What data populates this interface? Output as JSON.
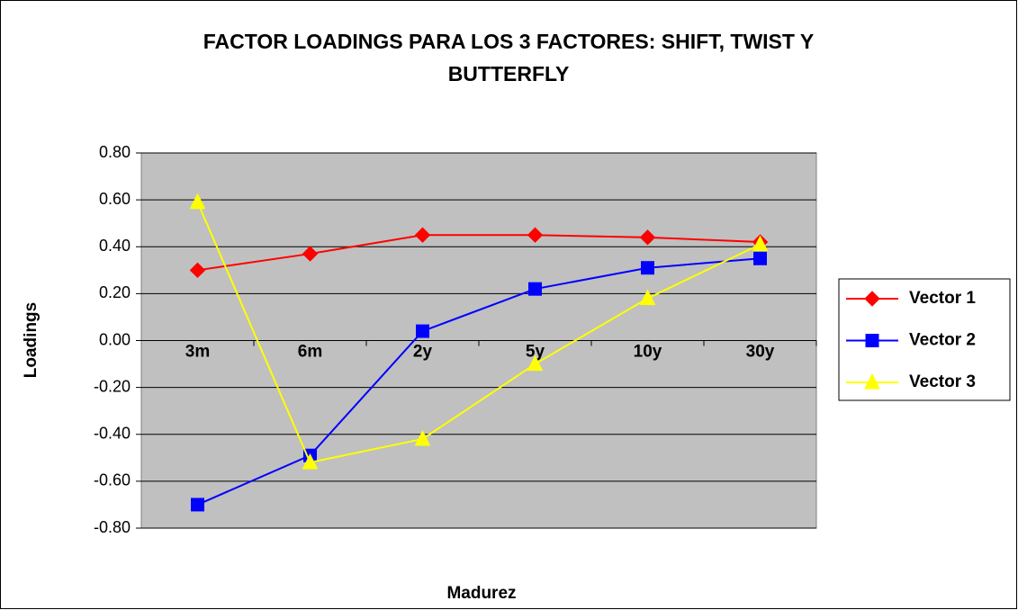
{
  "chart_data": {
    "type": "line",
    "title": "FACTOR LOADINGS PARA LOS 3 FACTORES: SHIFT, TWIST Y BUTTERFLY",
    "x_label": "Madurez",
    "y_label": "Loadings",
    "categories": [
      "3m",
      "6m",
      "2y",
      "5y",
      "10y",
      "30y"
    ],
    "series": [
      {
        "name": "Vector 1",
        "color": "#ff0000",
        "marker": "diamond",
        "values": [
          0.3,
          0.37,
          0.45,
          0.45,
          0.44,
          0.42
        ]
      },
      {
        "name": "Vector 2",
        "color": "#0000ff",
        "marker": "square",
        "values": [
          -0.7,
          -0.49,
          0.04,
          0.22,
          0.31,
          0.35
        ]
      },
      {
        "name": "Vector 3",
        "color": "#ffff00",
        "marker": "triangle",
        "values": [
          0.59,
          -0.52,
          -0.42,
          -0.1,
          0.18,
          0.41
        ]
      }
    ],
    "ylim": [
      -0.8,
      0.8
    ],
    "yticks": [
      {
        "value": -0.8,
        "label": "-0.80"
      },
      {
        "value": -0.6,
        "label": "-0.60"
      },
      {
        "value": -0.4,
        "label": "-0.40"
      },
      {
        "value": -0.2,
        "label": "-0.20"
      },
      {
        "value": 0,
        "label": "0.00"
      },
      {
        "value": 0.2,
        "label": "0.20"
      },
      {
        "value": 0.4,
        "label": "0.40"
      },
      {
        "value": 0.6,
        "label": "0.60"
      },
      {
        "value": 0.8,
        "label": "0.80"
      }
    ],
    "grid": true,
    "legend": "right"
  }
}
